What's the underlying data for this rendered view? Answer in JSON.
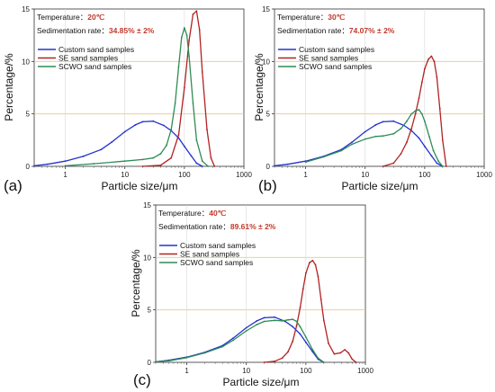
{
  "chart_data": [
    {
      "type": "line",
      "panel_label": "(a)",
      "xlabel": "Particle size/μm",
      "ylabel": "Percentage/%",
      "x_scale": "log",
      "xlim": [
        0.3,
        1000
      ],
      "ylim": [
        0,
        15
      ],
      "x_ticks": [
        "1",
        "10",
        "100",
        "1000"
      ],
      "y_ticks": [
        "0",
        "5",
        "10",
        "15"
      ],
      "gridlines_y": [
        5,
        10
      ],
      "temperature_label": "Temperature：",
      "temperature_value": "20℃",
      "rate_label": "Sedimentation rate：",
      "rate_value": "34.85% ± 2%",
      "legend_position": "top-left",
      "series": [
        {
          "name": "Custom sand samples",
          "color": "#2233cc",
          "x": [
            0.3,
            0.5,
            1,
            2,
            4,
            6,
            10,
            15,
            20,
            30,
            45,
            60,
            80,
            100,
            130,
            160,
            200
          ],
          "y": [
            0.05,
            0.2,
            0.5,
            0.95,
            1.6,
            2.3,
            3.3,
            3.95,
            4.25,
            4.3,
            3.9,
            3.4,
            2.7,
            1.9,
            1.0,
            0.3,
            0.0
          ]
        },
        {
          "name": "SE sand samples",
          "color": "#b22222",
          "x": [
            20,
            40,
            60,
            80,
            100,
            120,
            140,
            160,
            180,
            200,
            240,
            280,
            320
          ],
          "y": [
            0,
            0.1,
            0.8,
            3.0,
            7.5,
            12.0,
            14.5,
            14.8,
            13.0,
            9.0,
            3.5,
            0.8,
            0
          ]
        },
        {
          "name": "SCWO sand samples",
          "color": "#2e8b57",
          "x": [
            1,
            3,
            10,
            20,
            30,
            40,
            50,
            60,
            70,
            80,
            90,
            100,
            110,
            120,
            140,
            160,
            200,
            250
          ],
          "y": [
            0.05,
            0.25,
            0.5,
            0.65,
            0.8,
            1.2,
            2.0,
            3.5,
            6.0,
            9.5,
            12.3,
            13.2,
            12.5,
            10.5,
            6.0,
            2.5,
            0.5,
            0
          ]
        }
      ]
    },
    {
      "type": "line",
      "panel_label": "(b)",
      "xlabel": "Particle size/μm",
      "ylabel": "Percentage/%",
      "x_scale": "log",
      "xlim": [
        0.3,
        1000
      ],
      "ylim": [
        0,
        15
      ],
      "x_ticks": [
        "1",
        "10",
        "100",
        "1000"
      ],
      "y_ticks": [
        "0",
        "5",
        "10",
        "15"
      ],
      "gridlines_y": [
        5,
        10
      ],
      "temperature_label": "Temperature：",
      "temperature_value": "30℃",
      "rate_label": "Sedimentation rate：",
      "rate_value": "74.07% ± 2%",
      "legend_position": "top-left",
      "series": [
        {
          "name": "Custom sand samples",
          "color": "#2233cc",
          "x": [
            0.3,
            0.5,
            1,
            2,
            4,
            6,
            10,
            15,
            20,
            30,
            45,
            60,
            80,
            100,
            130,
            160,
            200
          ],
          "y": [
            0.05,
            0.2,
            0.5,
            0.95,
            1.6,
            2.3,
            3.3,
            3.95,
            4.25,
            4.3,
            3.9,
            3.4,
            2.7,
            1.9,
            1.0,
            0.3,
            0.0
          ]
        },
        {
          "name": "SE sand samples",
          "color": "#b22222",
          "x": [
            20,
            30,
            40,
            50,
            60,
            70,
            80,
            90,
            100,
            115,
            130,
            145,
            160,
            180,
            200,
            230
          ],
          "y": [
            0,
            0.3,
            1.2,
            2.3,
            3.6,
            5.0,
            6.5,
            8.0,
            9.3,
            10.2,
            10.5,
            10.0,
            8.5,
            5.5,
            2.5,
            0
          ]
        },
        {
          "name": "SCWO sand samples",
          "color": "#2e8b57",
          "x": [
            1,
            2,
            4,
            6,
            10,
            15,
            20,
            30,
            40,
            50,
            60,
            70,
            80,
            90,
            100,
            120,
            140,
            170,
            200
          ],
          "y": [
            0.4,
            0.9,
            1.5,
            2.1,
            2.6,
            2.85,
            2.9,
            3.1,
            3.6,
            4.3,
            5.0,
            5.3,
            5.4,
            5.0,
            4.3,
            2.8,
            1.5,
            0.5,
            0
          ]
        }
      ]
    },
    {
      "type": "line",
      "panel_label": "(c)",
      "xlabel": "Particle size/μm",
      "ylabel": "Percentage/%",
      "x_scale": "log",
      "xlim": [
        0.3,
        1000
      ],
      "ylim": [
        0,
        15
      ],
      "x_ticks": [
        "1",
        "10",
        "100",
        "1000"
      ],
      "y_ticks": [
        "0",
        "5",
        "10",
        "15"
      ],
      "gridlines_y": [
        5,
        10
      ],
      "temperature_label": "Temperature：",
      "temperature_value": "40℃",
      "rate_label": "Sedimentation rate：",
      "rate_value": "89.61% ± 2%",
      "legend_position": "top-left",
      "series": [
        {
          "name": "Custom sand samples",
          "color": "#2233cc",
          "x": [
            0.3,
            0.5,
            1,
            2,
            4,
            6,
            10,
            15,
            20,
            30,
            45,
            60,
            80,
            100,
            130,
            160,
            200
          ],
          "y": [
            0.05,
            0.2,
            0.5,
            0.95,
            1.6,
            2.3,
            3.3,
            3.95,
            4.25,
            4.3,
            3.9,
            3.4,
            2.7,
            1.9,
            1.0,
            0.3,
            0.0
          ]
        },
        {
          "name": "SE sand samples",
          "color": "#b22222",
          "x": [
            20,
            30,
            40,
            50,
            60,
            70,
            80,
            90,
            100,
            115,
            130,
            145,
            160,
            180,
            200,
            240,
            300,
            380,
            450,
            520,
            600,
            700
          ],
          "y": [
            0,
            0.1,
            0.4,
            1.0,
            2.0,
            3.5,
            5.2,
            7.0,
            8.5,
            9.5,
            9.7,
            9.3,
            8.2,
            6.0,
            4.0,
            1.8,
            0.8,
            0.9,
            1.2,
            0.9,
            0.3,
            0
          ]
        },
        {
          "name": "SCWO sand samples",
          "color": "#2e8b57",
          "x": [
            0.3,
            0.5,
            1,
            2,
            4,
            6,
            10,
            15,
            20,
            30,
            40,
            50,
            60,
            70,
            80,
            100,
            130,
            160,
            200
          ],
          "y": [
            0.05,
            0.15,
            0.45,
            0.9,
            1.5,
            2.1,
            3.0,
            3.6,
            3.9,
            4.0,
            3.95,
            4.05,
            4.1,
            3.9,
            3.4,
            2.4,
            1.2,
            0.4,
            0
          ]
        }
      ]
    }
  ]
}
